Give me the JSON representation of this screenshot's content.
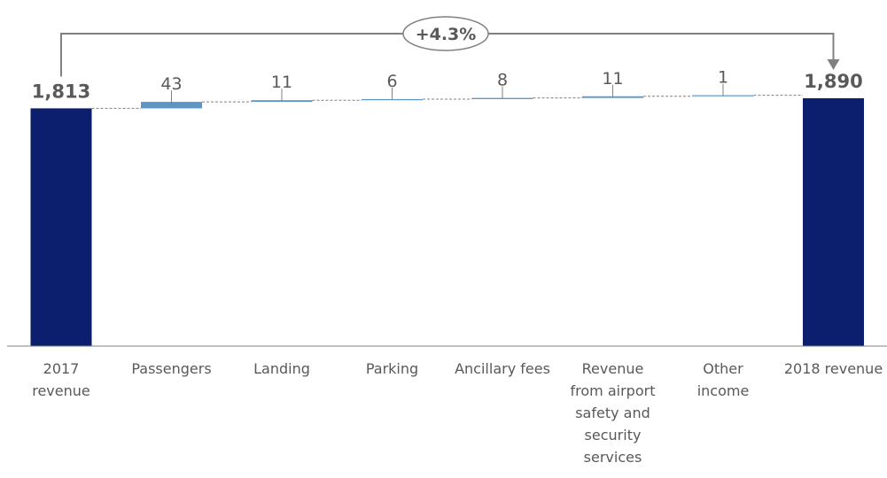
{
  "chart_data": {
    "type": "waterfall",
    "categories": [
      "2017 revenue",
      "Passengers",
      "Landing",
      "Parking",
      "Ancillary fees",
      "Revenue from airport safety and security services",
      "Other income",
      "2018 revenue"
    ],
    "category_lines": [
      [
        "2017",
        "revenue"
      ],
      [
        "Passengers"
      ],
      [
        "Landing"
      ],
      [
        "Parking"
      ],
      [
        "Ancillary fees"
      ],
      [
        "Revenue",
        "from airport",
        "safety and",
        "security",
        "services"
      ],
      [
        "Other",
        "income"
      ],
      [
        "2018 revenue"
      ]
    ],
    "kinds": [
      "total",
      "increase",
      "increase",
      "increase",
      "increase",
      "increase",
      "increase",
      "total"
    ],
    "values": [
      1813,
      43,
      11,
      6,
      8,
      11,
      1,
      1890
    ],
    "value_labels": [
      "1,813",
      "43",
      "11",
      "6",
      "8",
      "11",
      "1",
      "1,890"
    ],
    "growth_annotation": "+4.3%",
    "ylim": [
      0,
      1890
    ],
    "colors": {
      "total": "#0b1f6e",
      "increase": "#5b96c6",
      "connector": "#808080",
      "axis": "#808080",
      "text": "#595959"
    }
  }
}
